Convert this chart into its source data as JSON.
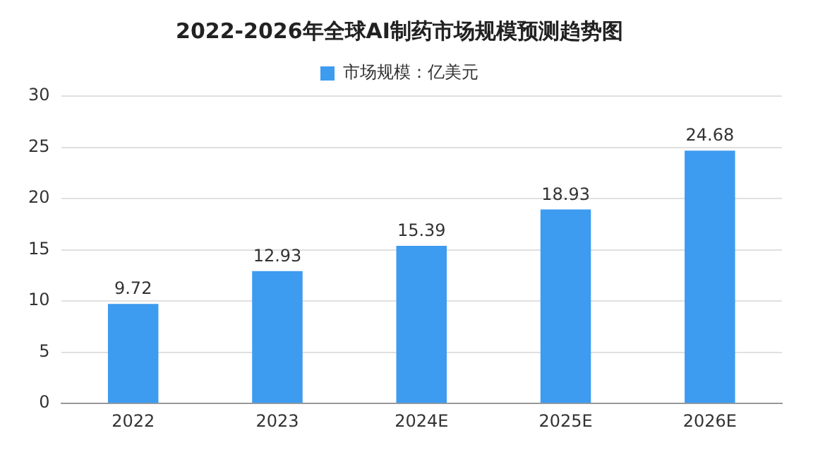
{
  "chart_data": {
    "type": "bar",
    "title": "2022-2026年全球AI制药市场规模预测趋势图",
    "categories": [
      "2022",
      "2023",
      "2024E",
      "2025E",
      "2026E"
    ],
    "series": [
      {
        "name": "市场规模：亿美元",
        "color": "#3d9bf0",
        "values": [
          9.72,
          12.93,
          15.39,
          18.93,
          24.68
        ]
      }
    ],
    "ylim": [
      0,
      30
    ],
    "yticks": [
      0,
      5,
      10,
      15,
      20,
      25,
      30
    ],
    "grid": "y",
    "legend": "top",
    "data_labels": true
  }
}
